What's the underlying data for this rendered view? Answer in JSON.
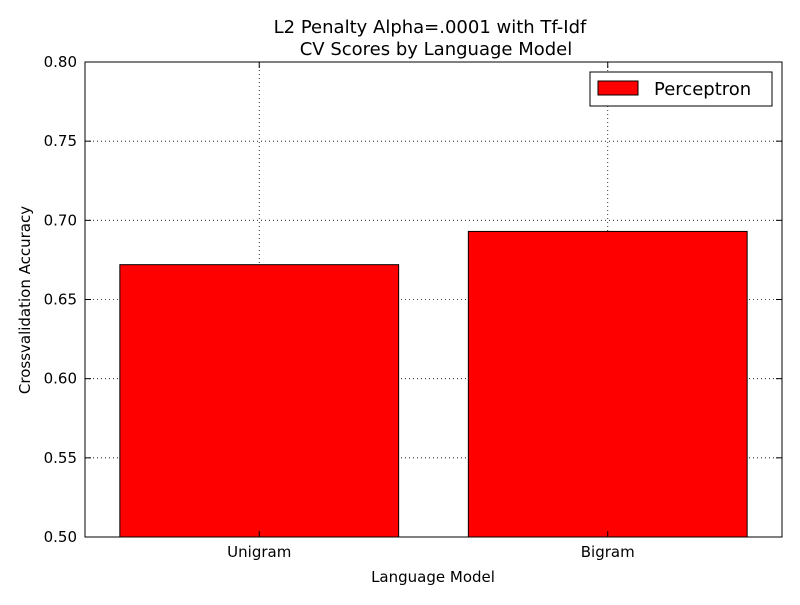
{
  "chart_data": {
    "type": "bar",
    "title_lines": [
      "L2 Penalty Alpha=.0001 with Tf-Idf",
      "CV Scores by Language Model"
    ],
    "xlabel": "Language Model",
    "ylabel": "Crossvalidation Accuracy",
    "categories": [
      "Unigram",
      "Bigram"
    ],
    "series": [
      {
        "name": "Perceptron",
        "values": [
          0.672,
          0.693
        ],
        "color": "#ff0000"
      }
    ],
    "ylim": [
      0.5,
      0.8
    ],
    "yticks": [
      "0.50",
      "0.55",
      "0.60",
      "0.65",
      "0.70",
      "0.75",
      "0.80"
    ],
    "grid": true,
    "legend_position": "top-right"
  }
}
